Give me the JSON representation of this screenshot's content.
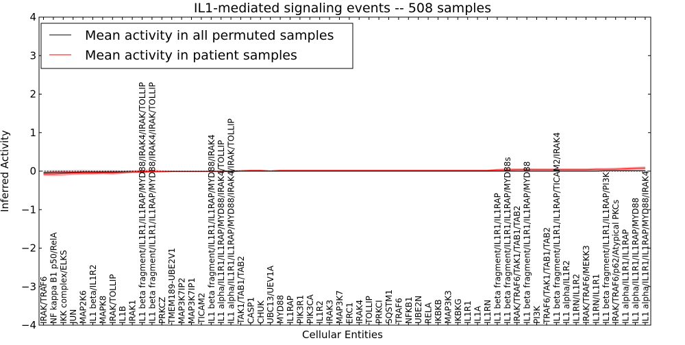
{
  "chart_data": {
    "type": "line",
    "title": "IL1-mediated signaling events -- 508 samples",
    "xlabel": "Cellular Entities",
    "ylabel": "Inferred Activity",
    "ylim": [
      -4,
      4
    ],
    "yticks": [
      -4,
      -3,
      -2,
      -1,
      0,
      1,
      2,
      3,
      4
    ],
    "ytick_labels": [
      "−4",
      "−3",
      "−2",
      "−1",
      "0",
      "1",
      "2",
      "3",
      "4"
    ],
    "grid": false,
    "legend_position": "top-left",
    "categories": [
      "IRAK/TRAF6",
      "NF kappa B1 p50/RelA",
      "IKK complex/ELKS",
      "JUN",
      "MAP2K6",
      "IL1 beta/IL1R2",
      "MAPK8",
      "IRAK/TOLLIP",
      "IL1B",
      "IRAK1",
      "IL1 beta fragment/IL1R1/IL1RAP/MYD88/IRAK4/IRAK/TOLLIP",
      "IL1 beta fragment/IL1R1/IL1RAP/MYD88/IRAK4/IRAK/TOLLIP",
      "PRKCZ",
      "TMEM189-UBE2V1",
      "MAP3K7IP2",
      "MAP3K7IP1",
      "TICAM2",
      "IL1 beta fragment/IL1R1/IL1RAP/MYD88/IRAK4",
      "IL1 alpha/IL1R1/IL1RAP/MYD88/IRAK4/TOLLIP",
      "IL1 alpha/IL1R1/IL1RAP/MYD88/IRAK4/IRAK/TOLLIP",
      "TAK1/TAB1/TAB2",
      "CASP1",
      "CHUK",
      "UBC13/UEV1A",
      "MYD88",
      "IL1RAP",
      "PIK3R1",
      "PIK3CA",
      "IL1R2",
      "IRAK3",
      "MAP3K7",
      "ERC1",
      "IRAK4",
      "TOLLIP",
      "PRKCI",
      "SQSTM1",
      "TRAF6",
      "NFKB1",
      "UBE2N",
      "RELA",
      "IKBKB",
      "MAP3K3",
      "IKBKG",
      "IL1R1",
      "IL1A",
      "IL1RN",
      "IL1 beta fragment/IL1R1/IL1RAP",
      "IL1 beta fragment/IL1R1/IL1RAP/MYD88s",
      "IRAK/TRAF6/TAK1/TAB1/TAB2",
      "IL1 beta fragment/IL1R1/IL1RAP/MYD88",
      "PI3K",
      "TRAF6/TAK1/TAB1/TAB2",
      "IL1 beta fragment/IL1R1/IL1RAP/TICAM2/IRAK4",
      "IL1 alpha/IL1R2",
      "IL1RN/IL1R2",
      "IRAK/TRAF6/MEKK3",
      "IL1RN/IL1R1",
      "IL1 beta fragment/IL1R1/IL1RAP/PI3K",
      "IRAK/TRAF6/p62/Atypical PKCs",
      "IL1 alpha/IL1R1/IL1RAP",
      "IL1 alpha/IL1R1/IL1RAP/MYD88",
      "IL1 alpha/IL1R1/IL1RAP/MYD88/IRAK4"
    ],
    "series": [
      {
        "name": "Mean activity in all permuted samples",
        "color": "#000000",
        "values": [
          -0.04,
          -0.03,
          -0.03,
          -0.03,
          -0.02,
          -0.02,
          -0.02,
          -0.02,
          -0.02,
          -0.02,
          -0.02,
          -0.01,
          -0.01,
          -0.01,
          -0.01,
          -0.01,
          -0.01,
          -0.01,
          -0.01,
          -0.01,
          0.0,
          0.0,
          0.0,
          0.0,
          0.0,
          0.0,
          0.0,
          0.0,
          0.0,
          0.0,
          0.0,
          0.0,
          0.0,
          0.0,
          0.0,
          0.0,
          0.0,
          0.0,
          0.0,
          0.0,
          0.0,
          0.0,
          0.0,
          0.0,
          0.0,
          0.0,
          0.0,
          0.0,
          0.0,
          0.0,
          0.0,
          0.0,
          0.0,
          0.0,
          0.0,
          0.0,
          0.0,
          0.01,
          0.01,
          0.01,
          0.01,
          0.01
        ],
        "band_low": [
          -0.1,
          -0.09,
          -0.08,
          -0.08,
          -0.08,
          -0.07,
          -0.07,
          -0.07,
          -0.06,
          -0.05,
          -0.05,
          -0.04,
          -0.04,
          -0.03,
          -0.03,
          -0.03,
          -0.03,
          -0.03,
          -0.03,
          -0.03,
          -0.02,
          -0.02,
          -0.02,
          -0.02,
          -0.02,
          -0.02,
          -0.02,
          -0.02,
          -0.02,
          -0.02,
          -0.02,
          -0.02,
          -0.02,
          -0.02,
          -0.02,
          -0.02,
          -0.02,
          -0.02,
          -0.02,
          -0.02,
          -0.02,
          -0.02,
          -0.02,
          -0.02,
          -0.02,
          -0.02,
          -0.02,
          -0.02,
          -0.02,
          -0.02,
          -0.02,
          -0.02,
          -0.02,
          -0.02,
          -0.02,
          -0.02,
          -0.02,
          -0.01,
          -0.01,
          -0.01,
          -0.01,
          -0.01
        ],
        "band_high": [
          0.02,
          0.03,
          0.03,
          0.03,
          0.04,
          0.03,
          0.03,
          0.03,
          0.02,
          0.02,
          0.01,
          0.01,
          0.01,
          0.01,
          0.01,
          0.01,
          0.01,
          0.01,
          0.01,
          0.01,
          0.02,
          0.02,
          0.02,
          0.02,
          0.02,
          0.02,
          0.02,
          0.02,
          0.02,
          0.02,
          0.02,
          0.02,
          0.02,
          0.02,
          0.02,
          0.02,
          0.02,
          0.02,
          0.02,
          0.02,
          0.02,
          0.02,
          0.02,
          0.02,
          0.02,
          0.02,
          0.02,
          0.02,
          0.02,
          0.02,
          0.02,
          0.02,
          0.02,
          0.02,
          0.02,
          0.02,
          0.02,
          0.03,
          0.03,
          0.03,
          0.03,
          0.03
        ]
      },
      {
        "name": "Mean activity in patient samples",
        "color": "#ff0000",
        "values": [
          -0.07,
          -0.07,
          -0.06,
          -0.05,
          -0.05,
          -0.05,
          -0.04,
          -0.04,
          -0.03,
          -0.02,
          -0.01,
          -0.01,
          -0.01,
          0.0,
          0.0,
          0.0,
          0.0,
          0.0,
          0.0,
          0.01,
          0.01,
          0.02,
          0.02,
          0.01,
          0.02,
          0.02,
          0.02,
          0.02,
          0.02,
          0.02,
          0.02,
          0.02,
          0.02,
          0.02,
          0.02,
          0.02,
          0.02,
          0.02,
          0.02,
          0.02,
          0.02,
          0.02,
          0.02,
          0.02,
          0.02,
          0.02,
          0.03,
          0.03,
          0.04,
          0.04,
          0.04,
          0.04,
          0.04,
          0.04,
          0.04,
          0.04,
          0.05,
          0.05,
          0.05,
          0.06,
          0.07,
          0.08
        ],
        "band_low": [
          -0.12,
          -0.13,
          -0.12,
          -0.1,
          -0.09,
          -0.09,
          -0.08,
          -0.09,
          -0.07,
          -0.05,
          -0.04,
          -0.04,
          -0.03,
          -0.02,
          -0.01,
          -0.01,
          -0.01,
          -0.01,
          -0.01,
          0.0,
          0.0,
          0.01,
          0.01,
          0.0,
          0.01,
          0.01,
          0.01,
          0.01,
          0.01,
          0.01,
          0.01,
          0.01,
          0.01,
          0.01,
          0.01,
          0.01,
          0.01,
          0.01,
          0.01,
          0.01,
          0.01,
          0.01,
          0.01,
          0.01,
          0.01,
          0.01,
          0.01,
          0.01,
          0.01,
          0.01,
          0.01,
          0.01,
          0.01,
          0.01,
          0.01,
          0.01,
          0.01,
          0.02,
          0.02,
          0.02,
          0.03,
          0.03
        ],
        "band_high": [
          -0.02,
          0.0,
          0.01,
          0.0,
          0.0,
          0.0,
          0.0,
          0.01,
          0.01,
          0.02,
          0.03,
          0.04,
          0.02,
          0.01,
          0.01,
          0.01,
          0.01,
          0.01,
          0.02,
          0.02,
          0.03,
          0.03,
          0.03,
          0.02,
          0.03,
          0.03,
          0.03,
          0.03,
          0.03,
          0.03,
          0.03,
          0.03,
          0.03,
          0.03,
          0.03,
          0.03,
          0.03,
          0.03,
          0.03,
          0.03,
          0.03,
          0.03,
          0.03,
          0.03,
          0.03,
          0.03,
          0.06,
          0.07,
          0.07,
          0.07,
          0.07,
          0.07,
          0.07,
          0.07,
          0.07,
          0.07,
          0.08,
          0.08,
          0.09,
          0.1,
          0.11,
          0.12
        ]
      }
    ],
    "baseline": 0
  }
}
